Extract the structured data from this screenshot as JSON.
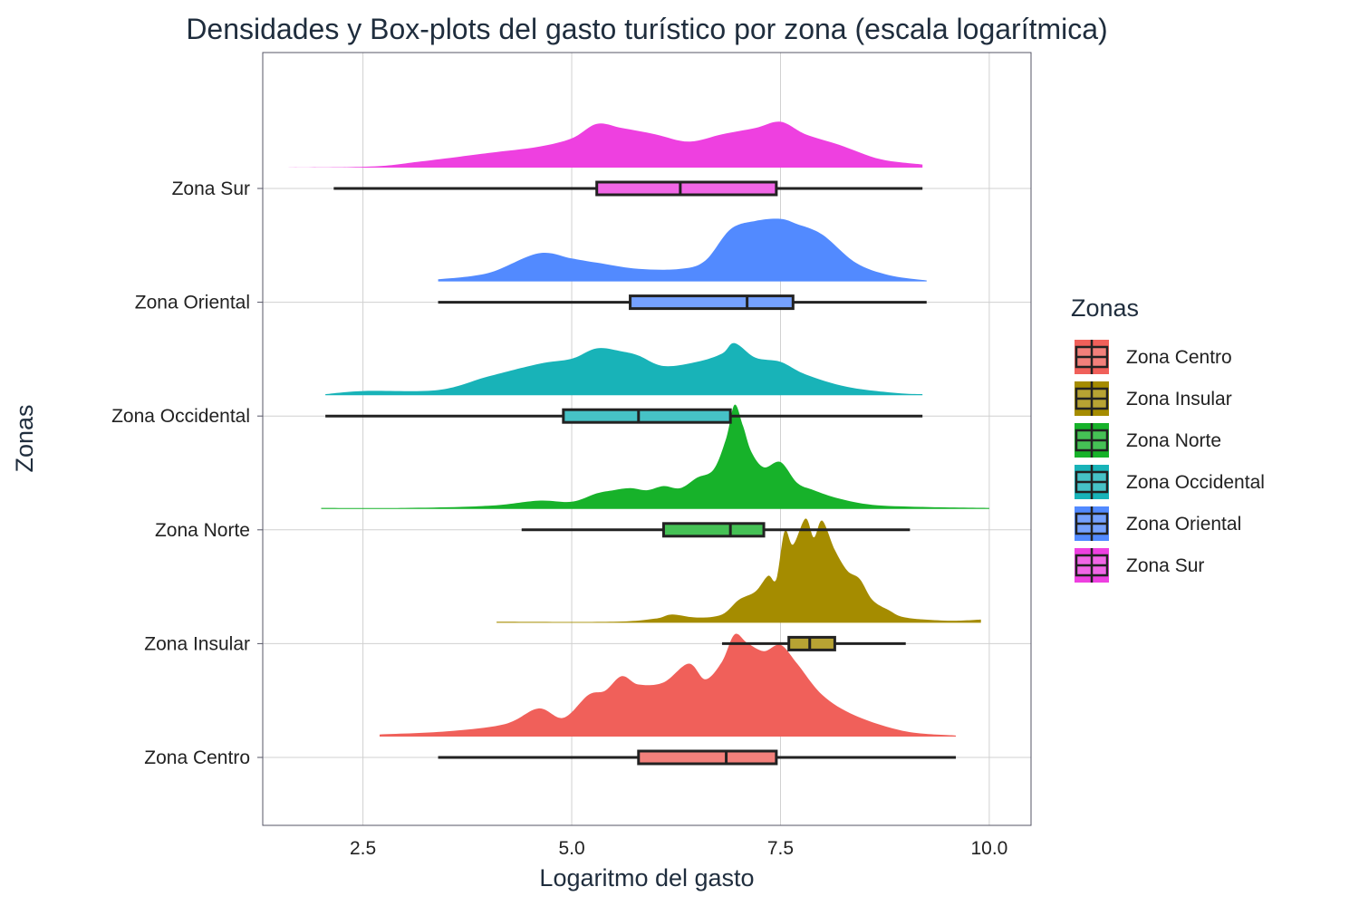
{
  "chart_data": {
    "type": "ridgeline-boxplot",
    "title": "Densidades y Box-plots del gasto turístico por zona (escala logarítmica)",
    "xlabel": "Logaritmo del gasto",
    "ylabel": "Zonas",
    "xlim": [
      1.3,
      10.5
    ],
    "x_ticks": [
      2.5,
      5.0,
      7.5,
      10.0
    ],
    "x_tick_labels": [
      "2.5",
      "5.0",
      "7.5",
      "10.0"
    ],
    "grid": true,
    "legend": {
      "title": "Zonas",
      "placement": "right"
    },
    "series": [
      {
        "name": "Zona Centro",
        "color": "#F0605A",
        "box": {
          "min": 3.4,
          "q1": 5.8,
          "median": 6.85,
          "q3": 7.45,
          "max": 9.6
        },
        "density": [
          [
            2.7,
            0.02
          ],
          [
            3.5,
            0.05
          ],
          [
            4.2,
            0.12
          ],
          [
            4.6,
            0.27
          ],
          [
            4.9,
            0.18
          ],
          [
            5.2,
            0.4
          ],
          [
            5.4,
            0.44
          ],
          [
            5.6,
            0.58
          ],
          [
            5.8,
            0.5
          ],
          [
            6.1,
            0.52
          ],
          [
            6.4,
            0.7
          ],
          [
            6.6,
            0.55
          ],
          [
            6.8,
            0.72
          ],
          [
            6.95,
            0.98
          ],
          [
            7.1,
            0.9
          ],
          [
            7.3,
            0.82
          ],
          [
            7.5,
            0.88
          ],
          [
            7.7,
            0.7
          ],
          [
            8.0,
            0.4
          ],
          [
            8.4,
            0.2
          ],
          [
            9.0,
            0.05
          ],
          [
            9.6,
            0.01
          ]
        ]
      },
      {
        "name": "Zona Insular",
        "color": "#A58C00",
        "box": {
          "min": 6.8,
          "q1": 7.6,
          "median": 7.85,
          "q3": 8.15,
          "max": 9.0
        },
        "density": [
          [
            4.1,
            0.01
          ],
          [
            5.5,
            0.01
          ],
          [
            6.0,
            0.04
          ],
          [
            6.2,
            0.08
          ],
          [
            6.5,
            0.05
          ],
          [
            6.8,
            0.08
          ],
          [
            7.0,
            0.22
          ],
          [
            7.2,
            0.3
          ],
          [
            7.35,
            0.45
          ],
          [
            7.45,
            0.42
          ],
          [
            7.55,
            0.88
          ],
          [
            7.65,
            0.75
          ],
          [
            7.8,
            1.0
          ],
          [
            7.9,
            0.82
          ],
          [
            8.0,
            0.98
          ],
          [
            8.15,
            0.7
          ],
          [
            8.3,
            0.5
          ],
          [
            8.45,
            0.42
          ],
          [
            8.6,
            0.22
          ],
          [
            8.8,
            0.12
          ],
          [
            9.0,
            0.05
          ],
          [
            9.5,
            0.02
          ],
          [
            9.9,
            0.03
          ]
        ]
      },
      {
        "name": "Zona Norte",
        "color": "#17B22A",
        "box": {
          "min": 4.4,
          "q1": 6.1,
          "median": 6.9,
          "q3": 7.3,
          "max": 9.05
        },
        "density": [
          [
            2.0,
            0.01
          ],
          [
            3.0,
            0.01
          ],
          [
            4.0,
            0.03
          ],
          [
            4.6,
            0.08
          ],
          [
            5.0,
            0.07
          ],
          [
            5.3,
            0.15
          ],
          [
            5.5,
            0.18
          ],
          [
            5.7,
            0.2
          ],
          [
            5.9,
            0.18
          ],
          [
            6.1,
            0.22
          ],
          [
            6.3,
            0.2
          ],
          [
            6.5,
            0.3
          ],
          [
            6.7,
            0.38
          ],
          [
            6.85,
            0.68
          ],
          [
            6.95,
            1.0
          ],
          [
            7.05,
            0.8
          ],
          [
            7.15,
            0.55
          ],
          [
            7.3,
            0.4
          ],
          [
            7.5,
            0.45
          ],
          [
            7.7,
            0.25
          ],
          [
            7.9,
            0.18
          ],
          [
            8.2,
            0.1
          ],
          [
            8.6,
            0.04
          ],
          [
            9.2,
            0.02
          ],
          [
            10.0,
            0.01
          ]
        ]
      },
      {
        "name": "Zona Occidental",
        "color": "#18B3B8",
        "box": {
          "min": 2.05,
          "q1": 4.9,
          "median": 5.8,
          "q3": 6.9,
          "max": 9.2
        },
        "density": [
          [
            2.05,
            0.01
          ],
          [
            2.5,
            0.04
          ],
          [
            3.4,
            0.05
          ],
          [
            4.0,
            0.18
          ],
          [
            4.6,
            0.3
          ],
          [
            5.0,
            0.35
          ],
          [
            5.3,
            0.45
          ],
          [
            5.6,
            0.42
          ],
          [
            5.8,
            0.38
          ],
          [
            6.1,
            0.28
          ],
          [
            6.5,
            0.32
          ],
          [
            6.8,
            0.4
          ],
          [
            6.95,
            0.5
          ],
          [
            7.2,
            0.36
          ],
          [
            7.5,
            0.32
          ],
          [
            7.8,
            0.2
          ],
          [
            8.3,
            0.08
          ],
          [
            8.9,
            0.02
          ],
          [
            9.2,
            0.01
          ]
        ]
      },
      {
        "name": "Zona Oriental",
        "color": "#528AFF",
        "box": {
          "min": 3.4,
          "q1": 5.7,
          "median": 7.1,
          "q3": 7.65,
          "max": 9.25
        },
        "density": [
          [
            3.4,
            0.02
          ],
          [
            4.0,
            0.08
          ],
          [
            4.6,
            0.27
          ],
          [
            5.0,
            0.22
          ],
          [
            5.3,
            0.18
          ],
          [
            5.8,
            0.12
          ],
          [
            6.3,
            0.12
          ],
          [
            6.6,
            0.2
          ],
          [
            6.9,
            0.5
          ],
          [
            7.2,
            0.58
          ],
          [
            7.5,
            0.6
          ],
          [
            7.7,
            0.55
          ],
          [
            8.0,
            0.45
          ],
          [
            8.4,
            0.18
          ],
          [
            8.8,
            0.06
          ],
          [
            9.25,
            0.01
          ]
        ]
      },
      {
        "name": "Zona Sur",
        "color": "#EE40E0",
        "box": {
          "min": 2.15,
          "q1": 5.3,
          "median": 6.3,
          "q3": 7.45,
          "max": 9.2
        },
        "density": [
          [
            1.6,
            0.0
          ],
          [
            2.6,
            0.01
          ],
          [
            3.2,
            0.06
          ],
          [
            4.0,
            0.14
          ],
          [
            4.6,
            0.2
          ],
          [
            5.0,
            0.28
          ],
          [
            5.3,
            0.42
          ],
          [
            5.6,
            0.38
          ],
          [
            6.0,
            0.32
          ],
          [
            6.4,
            0.25
          ],
          [
            6.8,
            0.32
          ],
          [
            7.2,
            0.38
          ],
          [
            7.5,
            0.44
          ],
          [
            7.8,
            0.32
          ],
          [
            8.2,
            0.22
          ],
          [
            8.7,
            0.08
          ],
          [
            9.2,
            0.03
          ]
        ]
      }
    ]
  }
}
